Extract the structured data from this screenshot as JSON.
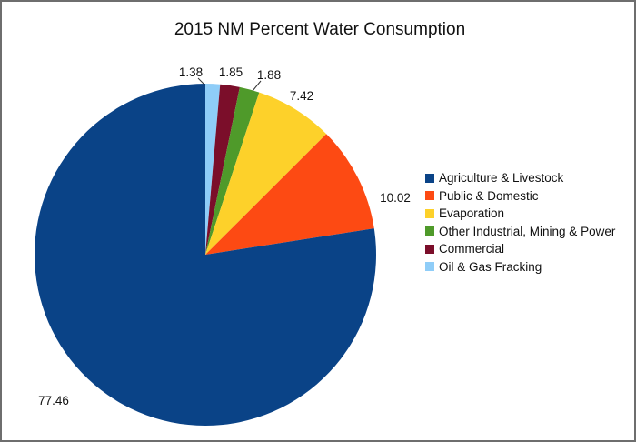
{
  "chart_data": {
    "type": "pie",
    "title": "2015 NM Percent Water Consumption",
    "series": [
      {
        "name": "Agriculture & Livestock",
        "value": 77.46,
        "label": "77.46",
        "color": "#0a4387"
      },
      {
        "name": "Public & Domestic",
        "value": 10.02,
        "label": "10.02",
        "color": "#fd4a13"
      },
      {
        "name": "Evaporation",
        "value": 7.42,
        "label": "7.42",
        "color": "#fdd12a"
      },
      {
        "name": "Other Industrial, Mining & Power",
        "value": 1.88,
        "label": "1.88",
        "color": "#4f9a2a"
      },
      {
        "name": "Commercial",
        "value": 1.85,
        "label": "1.85",
        "color": "#7b0e2a"
      },
      {
        "name": "Oil & Gas Fracking",
        "value": 1.38,
        "label": "1.38",
        "color": "#8fcdf8"
      }
    ],
    "start": "12 o'clock",
    "direction": "clockwise from last series",
    "legend": "right"
  }
}
